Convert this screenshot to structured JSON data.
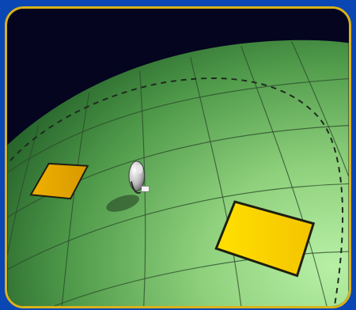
{
  "scene": {
    "frame_color": "#d9b21a",
    "outer_background": "#0a46b4",
    "sky_color": "#05051f",
    "planet_dark": "#2e6a30",
    "planet_light": "#9fdf8f",
    "grid_line_color": "#2b4a2b",
    "path_color": "#1e2a1e",
    "pad_small_color": "#e6a800",
    "pad_large_color": "#ffd400",
    "pad_outline_color": "#1e1e10",
    "figure_icon": "astronaut-icon",
    "pads": [
      {
        "name": "landing-pad-small",
        "icon": "landing-pad-icon"
      },
      {
        "name": "landing-pad-large",
        "icon": "landing-pad-icon"
      }
    ]
  }
}
